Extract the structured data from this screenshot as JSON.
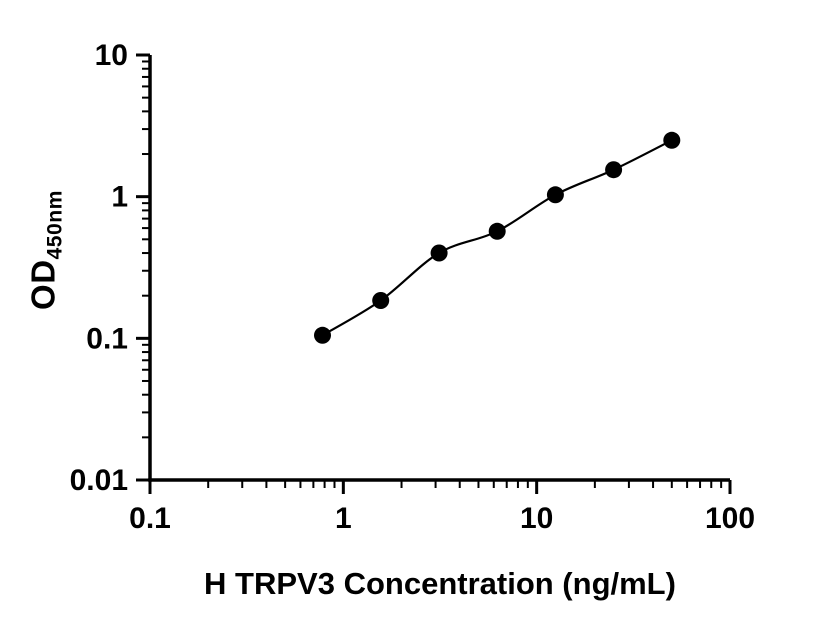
{
  "chart_data": {
    "type": "scatter",
    "title": "",
    "xlabel": "H TRPV3 Concentration (ng/mL)",
    "ylabel": "OD",
    "ylabel_sub": "450nm",
    "x_scale": "log",
    "y_scale": "log",
    "xlim": [
      0.1,
      100
    ],
    "ylim": [
      0.01,
      10
    ],
    "x_ticks": [
      0.1,
      1,
      10,
      100
    ],
    "x_tick_labels": [
      "0.1",
      "1",
      "10",
      "100"
    ],
    "y_ticks": [
      0.01,
      0.1,
      1,
      10
    ],
    "y_tick_labels": [
      "0.01",
      "0.1",
      "1",
      "10"
    ],
    "grid": false,
    "legend": false,
    "axis_color": "#000000",
    "series": [
      {
        "x": [
          0.78,
          1.56,
          3.13,
          6.25,
          12.5,
          25,
          50
        ],
        "y": [
          0.105,
          0.185,
          0.4,
          0.57,
          1.03,
          1.55,
          2.5
        ],
        "marker": "circle",
        "color": "#000000",
        "fit_line": true
      }
    ]
  }
}
